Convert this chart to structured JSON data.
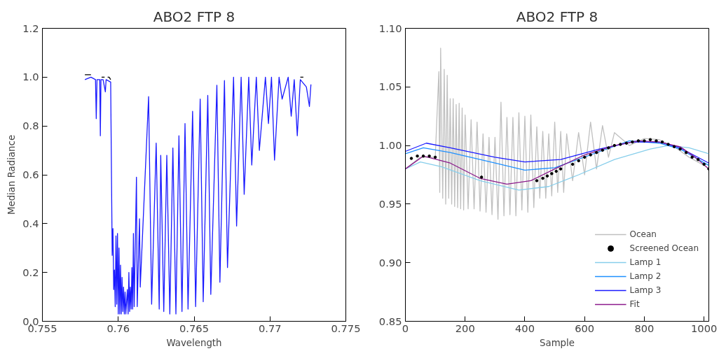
{
  "chart_data": [
    {
      "type": "line",
      "title": "ABO2 FTP 8",
      "xlabel": "Wavelength",
      "ylabel": "Median Radiance",
      "xlim": [
        0.755,
        0.775
      ],
      "xticks": [
        0.755,
        0.76,
        0.765,
        0.77,
        0.775
      ],
      "ylim": [
        0,
        1.2
      ],
      "yticks": [
        {
          "value": 0,
          "label": "0.0"
        },
        0.2,
        0.4,
        0.6,
        0.8,
        {
          "value": 1,
          "label": "1.0"
        },
        1.2
      ],
      "series": [
        {
          "color": "#000000",
          "x": [
            0.7578,
            0.758,
            0.7582,
            0.7583,
            0.7589,
            0.759,
            0.7591,
            0.75915,
            0.7593,
            0.7594,
            0.7595,
            0.75955,
            0.772,
            0.7721,
            0.7722
          ],
          "values": [
            1.01,
            1.01,
            1.01,
            null,
            1.0,
            1.0,
            1.0,
            null,
            1.0,
            1.0,
            0.99,
            null,
            1.0,
            1.0,
            1.0
          ]
        },
        {
          "color": "#1a1aff",
          "x": [
            0.7578,
            0.7582,
            0.7585,
            0.75855,
            0.7586,
            0.75878,
            0.75882,
            0.75886,
            0.759,
            0.75915,
            0.7592,
            0.7595,
            0.7596,
            0.75965,
            0.7597,
            0.75975,
            0.7598,
            0.75985,
            0.7599,
            0.75995,
            0.76,
            0.76005,
            0.7601,
            0.76015,
            0.7602,
            0.76025,
            0.7603,
            0.76035,
            0.7604,
            0.76045,
            0.7605,
            0.7606,
            0.76065,
            0.7607,
            0.76075,
            0.7608,
            0.76085,
            0.7609,
            0.76095,
            0.761,
            0.76105,
            0.7612,
            0.76125,
            0.7614,
            0.76145,
            0.762,
            0.7622,
            0.7625,
            0.7627,
            0.7628,
            0.763,
            0.7632,
            0.7634,
            0.7636,
            0.7638,
            0.764,
            0.7642,
            0.7644,
            0.7646,
            0.7649,
            0.7651,
            0.7654,
            0.7656,
            0.7659,
            0.7661,
            0.7665,
            0.7667,
            0.767,
            0.7672,
            0.7676,
            0.7678,
            0.7681,
            0.7683,
            0.7686,
            0.7688,
            0.7691,
            0.7693,
            0.7697,
            0.7699,
            0.7701,
            0.7703,
            0.7706,
            0.7708,
            0.7712,
            0.7714,
            0.7716,
            0.7718,
            0.772,
            0.7724,
            0.7726,
            0.7727
          ],
          "values": [
            0.99,
            1.0,
            0.99,
            0.83,
            0.99,
            0.99,
            0.76,
            0.99,
            0.99,
            0.94,
            0.99,
            0.98,
            0.27,
            0.38,
            0.13,
            0.21,
            0.06,
            0.35,
            0.07,
            0.36,
            0.03,
            0.3,
            0.03,
            0.23,
            0.03,
            0.18,
            0.04,
            0.14,
            0.03,
            0.12,
            0.03,
            0.13,
            0.03,
            0.2,
            0.04,
            0.14,
            0.05,
            0.22,
            0.05,
            0.36,
            0.06,
            0.59,
            0.06,
            0.42,
            0.14,
            0.92,
            0.07,
            0.73,
            0.05,
            0.68,
            0.04,
            0.68,
            0.03,
            0.71,
            0.03,
            0.76,
            0.04,
            0.81,
            0.05,
            0.86,
            0.06,
            0.91,
            0.08,
            0.925,
            0.11,
            0.967,
            0.16,
            0.986,
            0.22,
            1.0,
            0.39,
            1.0,
            0.52,
            1.0,
            0.64,
            1.0,
            0.7,
            1.0,
            0.81,
            1.0,
            0.66,
            1.0,
            0.91,
            1.0,
            0.84,
            0.99,
            0.76,
            0.99,
            0.96,
            0.88,
            0.97
          ]
        }
      ]
    },
    {
      "type": "line",
      "title": "ABO2 FTP 8",
      "xlabel": "Sample",
      "legend": "bottom right",
      "xlim": [
        0,
        1016
      ],
      "xticks": [
        0,
        200,
        400,
        600,
        800,
        1000
      ],
      "ylim": [
        0.85,
        1.1
      ],
      "yticks": [
        0.85,
        {
          "value": 0.9,
          "label": "0.90"
        },
        0.95,
        {
          "value": 1.0,
          "label": "1.00"
        },
        1.05,
        {
          "value": 1.1,
          "label": "1.10"
        }
      ],
      "series": [
        {
          "name": "Ocean",
          "color": "#c0c0c0",
          "x": [
            0,
            50,
            100,
            112,
            115,
            118,
            125,
            130,
            135,
            140,
            145,
            150,
            155,
            160,
            165,
            170,
            175,
            180,
            185,
            190,
            195,
            200,
            210,
            220,
            230,
            240,
            250,
            260,
            270,
            280,
            290,
            300,
            310,
            320,
            330,
            340,
            350,
            360,
            370,
            380,
            390,
            400,
            410,
            420,
            430,
            440,
            450,
            460,
            470,
            480,
            490,
            500,
            510,
            520,
            530,
            540,
            560,
            580,
            600,
            620,
            640,
            660,
            680,
            700,
            750,
            800,
            850,
            900,
            950,
            1000,
            1016
          ],
          "values": [
            0.98,
            0.99,
            0.99,
            1.063,
            0.96,
            1.083,
            0.955,
            1.065,
            0.95,
            1.06,
            0.955,
            1.04,
            0.95,
            1.04,
            0.948,
            1.035,
            0.947,
            1.036,
            0.946,
            1.032,
            0.945,
            1.026,
            0.946,
            1.022,
            0.946,
            1.02,
            0.944,
            1.01,
            0.943,
            1.007,
            0.941,
            1.007,
            0.937,
            1.037,
            0.94,
            1.024,
            0.941,
            1.024,
            0.94,
            1.028,
            0.945,
            1.025,
            0.943,
            1.026,
            0.947,
            1.016,
            0.955,
            1.012,
            0.955,
            1.01,
            0.957,
            1.02,
            0.96,
            1.012,
            0.96,
            1.01,
            0.97,
            1.011,
            0.975,
            1.02,
            0.98,
            1.017,
            0.99,
            1.011,
            1.0,
            1.006,
            1.005,
            0.999,
            0.99,
            0.983,
            0.98
          ]
        },
        {
          "name": "Screened Ocean",
          "type": "scatter",
          "marker": "circle",
          "color": "#000000",
          "x": [
            20,
            40,
            60,
            80,
            100,
            255,
            440,
            460,
            475,
            490,
            505,
            520,
            560,
            580,
            600,
            620,
            640,
            660,
            680,
            700,
            720,
            740,
            760,
            780,
            800,
            820,
            840,
            860,
            880,
            900,
            920,
            940,
            960,
            980,
            1000,
            1016
          ],
          "values": [
            0.989,
            0.991,
            0.991,
            0.991,
            0.99,
            0.973,
            0.97,
            0.972,
            0.974,
            0.976,
            0.978,
            0.98,
            0.984,
            0.987,
            0.99,
            0.992,
            0.994,
            0.996,
            0.998,
            1.0,
            1.001,
            1.002,
            1.003,
            1.004,
            1.004,
            1.005,
            1.004,
            1.003,
            1.001,
            0.999,
            0.997,
            0.994,
            0.99,
            0.988,
            0.984,
            0.98
          ]
        },
        {
          "name": "Lamp 1",
          "color": "#87ceeb",
          "x": [
            0,
            50,
            120,
            250,
            380,
            480,
            580,
            700,
            820,
            880,
            950,
            1016
          ],
          "values": [
            0.98,
            0.986,
            0.982,
            0.97,
            0.962,
            0.965,
            0.975,
            0.988,
            0.997,
            1.0,
            0.998,
            0.993
          ]
        },
        {
          "name": "Lamp 2",
          "color": "#1e90ff",
          "x": [
            0,
            60,
            150,
            300,
            400,
            500,
            620,
            750,
            850,
            920,
            1016
          ],
          "values": [
            0.993,
            0.998,
            0.994,
            0.985,
            0.979,
            0.981,
            0.992,
            1.004,
            1.002,
            0.997,
            0.983
          ]
        },
        {
          "name": "Lamp 3",
          "color": "#1a1aff",
          "x": [
            0,
            70,
            150,
            300,
            400,
            520,
            650,
            760,
            850,
            920,
            1016
          ],
          "values": [
            0.995,
            1.002,
            0.998,
            0.99,
            0.986,
            0.988,
            0.997,
            1.003,
            1.003,
            0.998,
            0.985
          ]
        },
        {
          "name": "Fit",
          "color": "#8b1a8b",
          "x": [
            0,
            60,
            150,
            250,
            340,
            420,
            500,
            600,
            700,
            780,
            850,
            920,
            970,
            1016
          ],
          "values": [
            0.98,
            0.991,
            0.985,
            0.972,
            0.967,
            0.97,
            0.98,
            0.992,
            1.0,
            1.004,
            1.003,
            0.999,
            0.99,
            0.98
          ]
        }
      ]
    }
  ]
}
